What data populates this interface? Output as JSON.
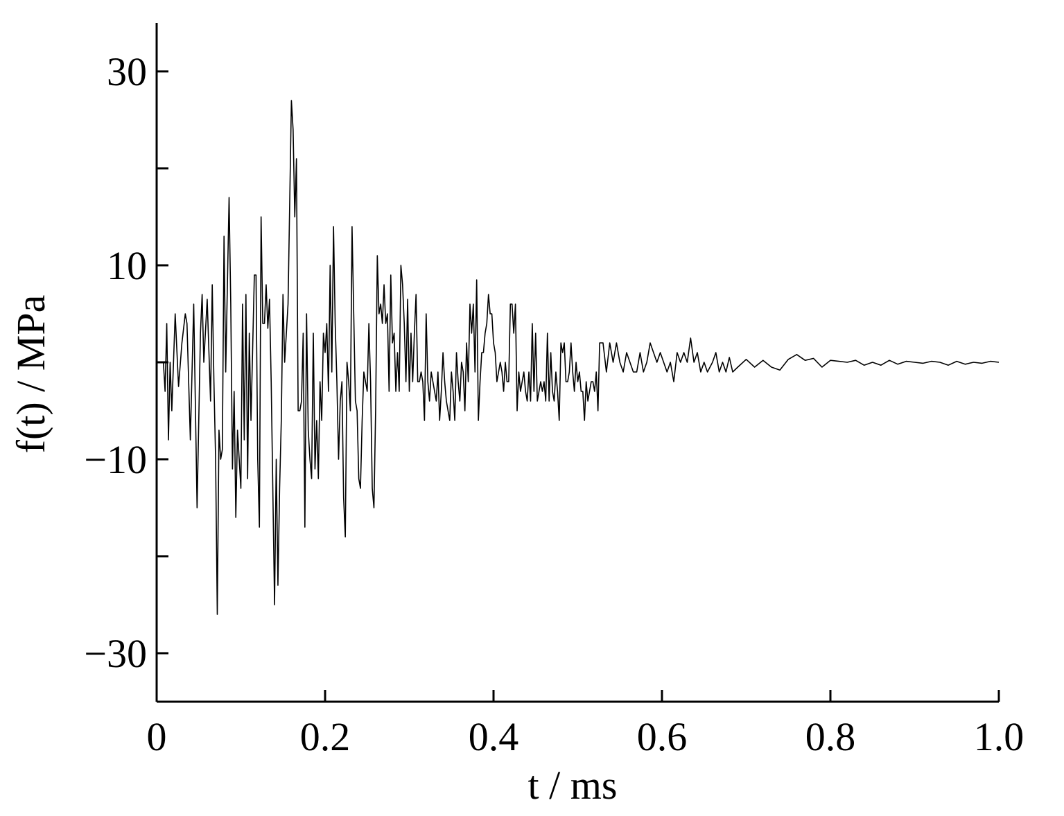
{
  "chart_data": {
    "type": "line",
    "xlabel": "t / ms",
    "ylabel": "f(t) / MPa",
    "color": "#000000",
    "xlim": [
      0,
      1.0
    ],
    "xticks": [
      0,
      0.2,
      0.4,
      0.6,
      0.8,
      {
        "value": 1.0,
        "label": "1.0"
      }
    ],
    "ylim": [
      -35,
      35
    ],
    "yticks": [
      {
        "value": -30,
        "label": "−30"
      },
      {
        "value": -10,
        "label": "−10"
      },
      10,
      30
    ],
    "yminorticks": [
      -20,
      0,
      20
    ],
    "x": [
      0,
      0.004,
      0.008,
      0.01,
      0.012,
      0.014,
      0.016,
      0.018,
      0.022,
      0.026,
      0.03,
      0.034,
      0.036,
      0.04,
      0.044,
      0.048,
      0.052,
      0.054,
      0.056,
      0.06,
      0.064,
      0.066,
      0.068,
      0.07,
      0.072,
      0.074,
      0.076,
      0.078,
      0.08,
      0.082,
      0.084,
      0.086,
      0.088,
      0.09,
      0.092,
      0.094,
      0.096,
      0.1,
      0.102,
      0.104,
      0.106,
      0.108,
      0.11,
      0.112,
      0.116,
      0.118,
      0.12,
      0.122,
      0.124,
      0.126,
      0.128,
      0.13,
      0.132,
      0.134,
      0.136,
      0.14,
      0.142,
      0.144,
      0.146,
      0.148,
      0.15,
      0.152,
      0.156,
      0.16,
      0.162,
      0.164,
      0.166,
      0.168,
      0.17,
      0.172,
      0.174,
      0.176,
      0.178,
      0.18,
      0.182,
      0.184,
      0.186,
      0.188,
      0.19,
      0.192,
      0.194,
      0.196,
      0.198,
      0.2,
      0.202,
      0.204,
      0.206,
      0.208,
      0.21,
      0.212,
      0.214,
      0.216,
      0.218,
      0.22,
      0.222,
      0.224,
      0.226,
      0.228,
      0.23,
      0.232,
      0.234,
      0.236,
      0.238,
      0.24,
      0.242,
      0.244,
      0.246,
      0.25,
      0.252,
      0.254,
      0.256,
      0.258,
      0.26,
      0.262,
      0.264,
      0.266,
      0.268,
      0.27,
      0.272,
      0.274,
      0.276,
      0.278,
      0.28,
      0.282,
      0.284,
      0.286,
      0.288,
      0.29,
      0.292,
      0.294,
      0.296,
      0.298,
      0.3,
      0.302,
      0.304,
      0.306,
      0.308,
      0.31,
      0.312,
      0.314,
      0.316,
      0.318,
      0.32,
      0.322,
      0.324,
      0.326,
      0.328,
      0.33,
      0.332,
      0.334,
      0.336,
      0.338,
      0.34,
      0.342,
      0.344,
      0.346,
      0.348,
      0.35,
      0.352,
      0.354,
      0.356,
      0.358,
      0.36,
      0.362,
      0.364,
      0.366,
      0.368,
      0.37,
      0.372,
      0.374,
      0.376,
      0.378,
      0.38,
      0.382,
      0.384,
      0.386,
      0.388,
      0.39,
      0.392,
      0.394,
      0.396,
      0.398,
      0.4,
      0.402,
      0.404,
      0.406,
      0.408,
      0.41,
      0.412,
      0.414,
      0.416,
      0.418,
      0.42,
      0.422,
      0.424,
      0.426,
      0.428,
      0.43,
      0.432,
      0.434,
      0.436,
      0.438,
      0.44,
      0.442,
      0.444,
      0.446,
      0.448,
      0.45,
      0.452,
      0.454,
      0.456,
      0.458,
      0.46,
      0.462,
      0.464,
      0.466,
      0.468,
      0.47,
      0.472,
      0.474,
      0.476,
      0.478,
      0.48,
      0.482,
      0.484,
      0.486,
      0.488,
      0.49,
      0.492,
      0.494,
      0.496,
      0.498,
      0.5,
      0.502,
      0.504,
      0.506,
      0.508,
      0.51,
      0.512,
      0.514,
      0.516,
      0.518,
      0.52,
      0.522,
      0.524,
      0.526,
      0.53,
      0.534,
      0.538,
      0.542,
      0.546,
      0.55,
      0.554,
      0.558,
      0.562,
      0.566,
      0.57,
      0.574,
      0.578,
      0.582,
      0.586,
      0.59,
      0.594,
      0.598,
      0.602,
      0.606,
      0.61,
      0.614,
      0.618,
      0.622,
      0.626,
      0.63,
      0.634,
      0.638,
      0.642,
      0.646,
      0.65,
      0.654,
      0.66,
      0.664,
      0.668,
      0.672,
      0.676,
      0.68,
      0.684,
      0.69,
      0.7,
      0.71,
      0.72,
      0.73,
      0.74,
      0.75,
      0.76,
      0.77,
      0.78,
      0.79,
      0.8,
      0.81,
      0.82,
      0.83,
      0.84,
      0.85,
      0.86,
      0.87,
      0.88,
      0.89,
      0.9,
      0.91,
      0.92,
      0.93,
      0.94,
      0.95,
      0.96,
      0.97,
      0.98,
      0.99,
      1.0
    ],
    "values": [
      0,
      0,
      0,
      -3,
      4,
      -8,
      0,
      -5,
      5,
      -2.5,
      2,
      5,
      4,
      -8,
      6,
      -15,
      3,
      7,
      0,
      6.5,
      -4,
      8,
      -2,
      -10,
      -26,
      -7,
      -10,
      -9,
      13,
      -1,
      8,
      17,
      6,
      -11,
      -3,
      -16,
      -7,
      -13,
      6,
      -8,
      7,
      -12,
      3,
      -6,
      9,
      9,
      -10,
      -17,
      15,
      4,
      4,
      8,
      3.5,
      6.5,
      -2,
      -25,
      -10,
      -23,
      -13,
      -6,
      7,
      0,
      6,
      27,
      24,
      15,
      21,
      -5,
      -5,
      -4,
      3,
      -17,
      5,
      -7,
      -10,
      -12,
      3,
      -11,
      -6,
      -12,
      -2,
      -6,
      3,
      1,
      4,
      -3,
      10,
      -1,
      14,
      4,
      -2,
      -10,
      -4,
      -2,
      -14,
      -18,
      0,
      -2,
      -5,
      14,
      5,
      -4,
      -5,
      -12,
      -13,
      -6,
      -1,
      -3,
      4,
      -2,
      -13,
      -15,
      -5,
      11,
      5,
      6,
      4,
      8,
      4,
      5,
      -3,
      9,
      2,
      3,
      -3,
      1,
      -3,
      10,
      8,
      4,
      -2,
      6.5,
      -3,
      3,
      -2,
      3,
      7,
      -2,
      -2,
      -1,
      -2,
      -6,
      5,
      -2,
      -4,
      -1,
      -2,
      -3,
      -4,
      -1,
      -6,
      -3,
      1,
      -2,
      -4,
      -5,
      -6,
      -1,
      -3,
      -6,
      1,
      -2,
      -4,
      0,
      -1,
      -5,
      2,
      -2,
      6,
      3,
      6,
      -1,
      8.5,
      -6,
      -2,
      1,
      1,
      3,
      4,
      7,
      5,
      5,
      2,
      1,
      -2,
      -1,
      0,
      -1,
      -3,
      0,
      -2,
      -2,
      6,
      6,
      3,
      6,
      -5,
      -1,
      -3,
      -2,
      -1,
      -3,
      -4,
      -1,
      -4,
      4,
      -3,
      3,
      -4,
      -3,
      -2,
      -3,
      -2,
      -4,
      3,
      -4,
      1,
      -3,
      -4,
      -1,
      -3,
      -6,
      2,
      1,
      2,
      -2,
      -2,
      -1,
      2,
      -1,
      -3,
      0,
      -2,
      -1,
      -3,
      -3,
      -6,
      -2,
      -4,
      -3,
      -2,
      -2,
      -3,
      -1,
      -5,
      2,
      2,
      -1,
      2,
      0,
      2,
      0,
      -1,
      1,
      0,
      -1,
      -1,
      1,
      -1,
      0,
      2,
      1,
      0,
      1,
      0,
      -1,
      0,
      -2,
      1,
      0,
      1,
      0,
      2.5,
      0,
      1,
      -1,
      0,
      -1,
      0,
      1,
      -1,
      0,
      -1,
      0.5,
      -1,
      -0.5,
      0.3,
      -0.5,
      0.2,
      -0.5,
      -0.8,
      0.3,
      0.8,
      0.2,
      0.4,
      -0.5,
      0.2,
      0.1,
      0,
      0.2,
      -0.3,
      0,
      -0.3,
      0.2,
      -0.2,
      0.1,
      0,
      -0.1,
      0.1,
      0,
      -0.3,
      0.1,
      -0.2,
      0,
      -0.1,
      0.1,
      0
    ]
  }
}
